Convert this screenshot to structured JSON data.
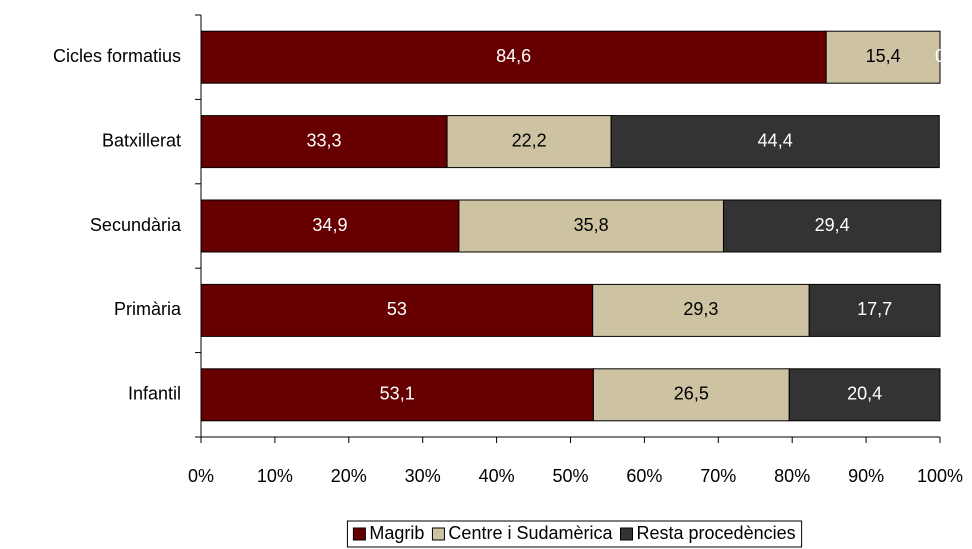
{
  "chart_data": {
    "type": "stacked_barh",
    "categories": [
      "Cicles formatius",
      "Batxillerat",
      "Secundària",
      "Primària",
      "Infantil"
    ],
    "series": [
      {
        "name": "Magrib",
        "color": "#660000",
        "label_color": "#ffffff",
        "values": [
          84.6,
          33.3,
          34.9,
          53,
          53.1
        ],
        "value_labels": [
          "84,6",
          "33,3",
          "34,9",
          "53",
          "53,1"
        ]
      },
      {
        "name": "Centre i Sudamèrica",
        "color": "#cdc3a3",
        "label_color": "#000000",
        "values": [
          15.4,
          22.2,
          35.8,
          29.3,
          26.5
        ],
        "value_labels": [
          "15,4",
          "22,2",
          "35,8",
          "29,3",
          "26,5"
        ]
      },
      {
        "name": "Resta procedències",
        "color": "#333333",
        "label_color": "#ffffff",
        "values": [
          0,
          44.4,
          29.4,
          17.7,
          20.4
        ],
        "value_labels": [
          "0",
          "44,4",
          "29,4",
          "17,7",
          "20,4"
        ]
      }
    ],
    "xlim": [
      0,
      100
    ],
    "xticks": [
      {
        "value": 0,
        "label": "0%"
      },
      {
        "value": 10,
        "label": "10%"
      },
      {
        "value": 20,
        "label": "20%"
      },
      {
        "value": 30,
        "label": "30%"
      },
      {
        "value": 40,
        "label": "40%"
      },
      {
        "value": 50,
        "label": "50%"
      },
      {
        "value": 60,
        "label": "60%"
      },
      {
        "value": 70,
        "label": "70%"
      },
      {
        "value": 80,
        "label": "80%"
      },
      {
        "value": 90,
        "label": "90%"
      },
      {
        "value": 100,
        "label": "100%"
      }
    ],
    "legend": "bottom"
  }
}
